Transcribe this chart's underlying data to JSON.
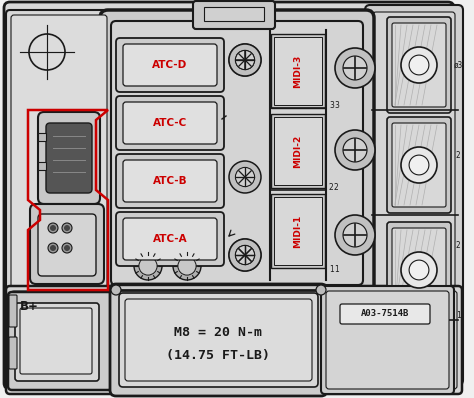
{
  "bg_color": "#d4d4d4",
  "line_color": "#1a1a1a",
  "red_color": "#cc0000",
  "atc_labels": [
    "ATC-D",
    "ATC-C",
    "ATC-B",
    "ATC-A"
  ],
  "midi_labels": [
    "MIDI-3",
    "MIDI-2",
    "MIDI-1"
  ],
  "torque_text_1": "M8 = 20 N-m",
  "torque_text_2": "(14.75 FT-LB)",
  "part_number": "A03-7514B",
  "bplus_label": "B+",
  "phi_label": "ø3"
}
